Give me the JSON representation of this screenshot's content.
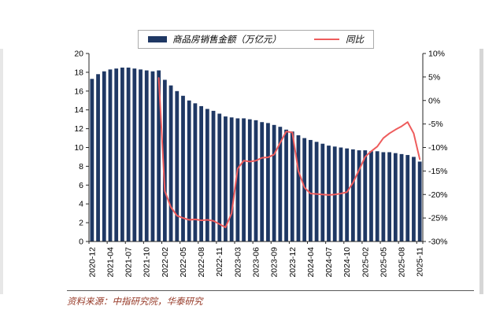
{
  "footer": {
    "source_note": "资料来源：中指研究院，华泰研究"
  },
  "chart_data": {
    "type": "bar+line",
    "grid": false,
    "legend_position": "top",
    "categories": [
      "2020-12",
      "2021-02",
      "2021-03",
      "2021-04",
      "2021-05",
      "2021-06",
      "2021-07",
      "2021-08",
      "2021-09",
      "2021-10",
      "2021-11",
      "2021-12",
      "2022-02",
      "2022-03",
      "2022-04",
      "2022-05",
      "2022-06",
      "2022-07",
      "2022-08",
      "2022-09",
      "2022-10",
      "2022-11",
      "2022-12",
      "2023-02",
      "2023-03",
      "2023-04",
      "2023-05",
      "2023-06",
      "2023-07",
      "2023-08",
      "2023-09",
      "2023-10",
      "2023-11",
      "2023-12",
      "2024-02",
      "2024-03",
      "2024-04",
      "2024-05",
      "2024-06",
      "2024-07",
      "2024-08",
      "2024-09",
      "2024-10",
      "2024-11",
      "2024-12",
      "2025-02",
      "2025-03",
      "2025-04",
      "2025-05",
      "2025-06",
      "2025-07",
      "2025-08",
      "2025-09",
      "2025-10",
      "2025-11"
    ],
    "x_tick_labels": [
      "2020-12",
      "2021-04",
      "2021-07",
      "2021-10",
      "2022-02",
      "2022-05",
      "2022-08",
      "2022-11",
      "2023-03",
      "2023-06",
      "2023-09",
      "2023-12",
      "2024-04",
      "2024-07",
      "2024-10",
      "2025-02",
      "2025-05",
      "2025-08",
      "2025-11"
    ],
    "series": [
      {
        "name": "商品房销售金额（万亿元）",
        "type": "bar",
        "axis": "left",
        "color": "#1F3864",
        "values": [
          17.3,
          17.8,
          18.1,
          18.3,
          18.4,
          18.5,
          18.5,
          18.4,
          18.3,
          18.2,
          18.1,
          18.2,
          17.2,
          16.6,
          16.0,
          15.5,
          15.0,
          14.7,
          14.4,
          14.1,
          13.9,
          13.6,
          13.3,
          13.2,
          13.1,
          13.1,
          13.0,
          12.9,
          12.7,
          12.6,
          12.4,
          12.2,
          11.9,
          11.7,
          11.3,
          11.0,
          10.8,
          10.6,
          10.4,
          10.2,
          10.1,
          10.0,
          9.9,
          9.8,
          9.7,
          9.7,
          9.6,
          9.6,
          9.5,
          9.5,
          9.4,
          9.3,
          9.2,
          9.0,
          8.5
        ]
      },
      {
        "name": "同比",
        "type": "line",
        "axis": "right",
        "color": "#EE5C5C",
        "values": [
          null,
          null,
          null,
          null,
          null,
          null,
          null,
          null,
          null,
          null,
          null,
          4.8,
          -19.3,
          -22.7,
          -24.5,
          -25.0,
          -25.4,
          -25.3,
          -25.5,
          -25.4,
          -25.6,
          -26.3,
          -27.0,
          -24.0,
          -14.5,
          -12.8,
          -13.0,
          -12.8,
          -12.2,
          -12.1,
          -11.5,
          -9.0,
          -6.6,
          -6.8,
          -15.0,
          -18.5,
          -19.8,
          -19.9,
          -20.0,
          -20.1,
          -20.0,
          -19.8,
          -19.5,
          -17.5,
          -14.8,
          -12.0,
          -10.8,
          -9.8,
          -8.0,
          -7.0,
          -6.2,
          -5.5,
          -4.6,
          -7.0,
          -12.5
        ]
      }
    ],
    "left_axis": {
      "min": 0,
      "max": 20,
      "tick_values": [
        20,
        18,
        16,
        14,
        12,
        10,
        8,
        6,
        4,
        2,
        0
      ],
      "tick_labels": [
        "20",
        "18",
        "16",
        "14",
        "12",
        "10",
        "8",
        "6",
        "4",
        "2",
        "0"
      ]
    },
    "right_axis": {
      "min": -30,
      "max": 10,
      "tick_values": [
        10,
        5,
        0,
        -5,
        -10,
        -15,
        -20,
        -25,
        -30
      ],
      "tick_labels": [
        "10%",
        "5%",
        "0%",
        "-5%",
        "-10%",
        "-15%",
        "-20%",
        "-25%",
        "-30%"
      ]
    }
  }
}
